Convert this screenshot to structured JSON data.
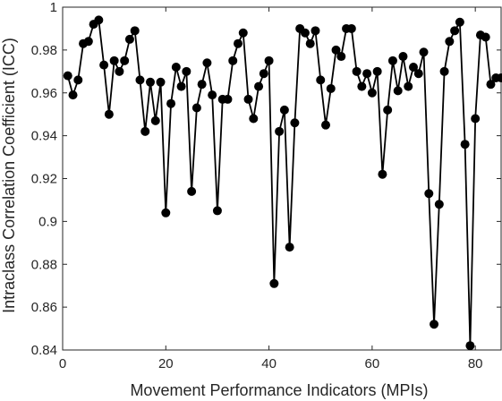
{
  "chart_data": {
    "type": "line",
    "xlabel": "Movement Performance Indicators (MPIs)",
    "ylabel": "Intraclass Correlation Coefficient (ICC)",
    "xlim": [
      0,
      85
    ],
    "ylim": [
      0.84,
      1.0
    ],
    "xticks": [
      0,
      20,
      40,
      60,
      80
    ],
    "yticks": [
      0.84,
      0.86,
      0.88,
      0.9,
      0.92,
      0.94,
      0.96,
      0.98,
      1.0
    ],
    "ytick_labels": [
      "0.84",
      "0.86",
      "0.88",
      "0.9",
      "0.92",
      "0.94",
      "0.96",
      "0.98",
      "1"
    ],
    "grid": false,
    "marker": "filled-circle",
    "line_color": "#000000",
    "series": [
      {
        "x": [
          1,
          2,
          3,
          4,
          5,
          6,
          7,
          8,
          9,
          10,
          11,
          12,
          13,
          14,
          15,
          16,
          17,
          18,
          19,
          20,
          21,
          22,
          23,
          24,
          25,
          26,
          27,
          28,
          29,
          30,
          31,
          32,
          33,
          34,
          35,
          36,
          37,
          38,
          39,
          40,
          41,
          42,
          43,
          44,
          45,
          46,
          47,
          48,
          49,
          50,
          51,
          52,
          53,
          54,
          55,
          56,
          57,
          58,
          59,
          60,
          61,
          62,
          63,
          64,
          65,
          66,
          67,
          68,
          69,
          70,
          71,
          72,
          73,
          74,
          75,
          76,
          77,
          78,
          79,
          80,
          81,
          82,
          83,
          84,
          85
        ],
        "values": [
          0.968,
          0.959,
          0.966,
          0.983,
          0.984,
          0.992,
          0.994,
          0.973,
          0.95,
          0.975,
          0.97,
          0.975,
          0.985,
          0.989,
          0.966,
          0.942,
          0.965,
          0.947,
          0.965,
          0.904,
          0.955,
          0.972,
          0.963,
          0.97,
          0.914,
          0.953,
          0.964,
          0.974,
          0.959,
          0.905,
          0.957,
          0.957,
          0.975,
          0.983,
          0.988,
          0.957,
          0.948,
          0.963,
          0.969,
          0.975,
          0.871,
          0.942,
          0.952,
          0.888,
          0.946,
          0.99,
          0.988,
          0.983,
          0.989,
          0.966,
          0.945,
          0.962,
          0.98,
          0.977,
          0.99,
          0.99,
          0.97,
          0.963,
          0.969,
          0.96,
          0.97,
          0.922,
          0.952,
          0.975,
          0.961,
          0.977,
          0.963,
          0.972,
          0.969,
          0.979,
          0.913,
          0.852,
          0.908,
          0.97,
          0.984,
          0.989,
          0.993,
          0.936,
          0.842,
          0.948,
          0.987,
          0.986,
          0.964,
          0.967,
          0.967
        ]
      }
    ]
  }
}
